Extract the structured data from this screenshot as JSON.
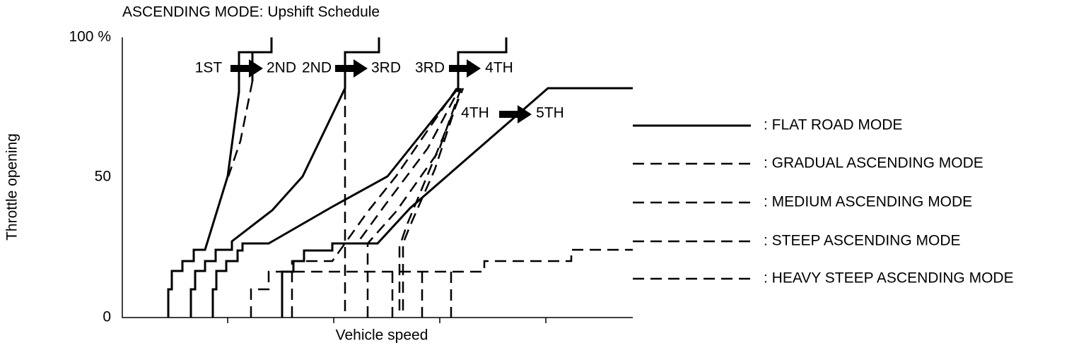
{
  "title": "ASCENDING MODE: Upshift Schedule",
  "y_axis": {
    "label": "Throttle opening",
    "ticks": [
      "100 %",
      "50",
      "0"
    ]
  },
  "x_axis": {
    "label": "Vehicle speed"
  },
  "shifts": [
    {
      "from": "1ST",
      "to": "2ND"
    },
    {
      "from": "2ND",
      "to": "3RD"
    },
    {
      "from": "3RD",
      "to": "4TH"
    },
    {
      "from": "4TH",
      "to": "5TH"
    }
  ],
  "legend": [
    ": FLAT ROAD MODE",
    ": GRADUAL ASCENDING MODE",
    ": MEDIUM ASCENDING MODE",
    ": STEEP ASCENDING MODE",
    ": HEAVY STEEP ASCENDING MODE"
  ]
}
